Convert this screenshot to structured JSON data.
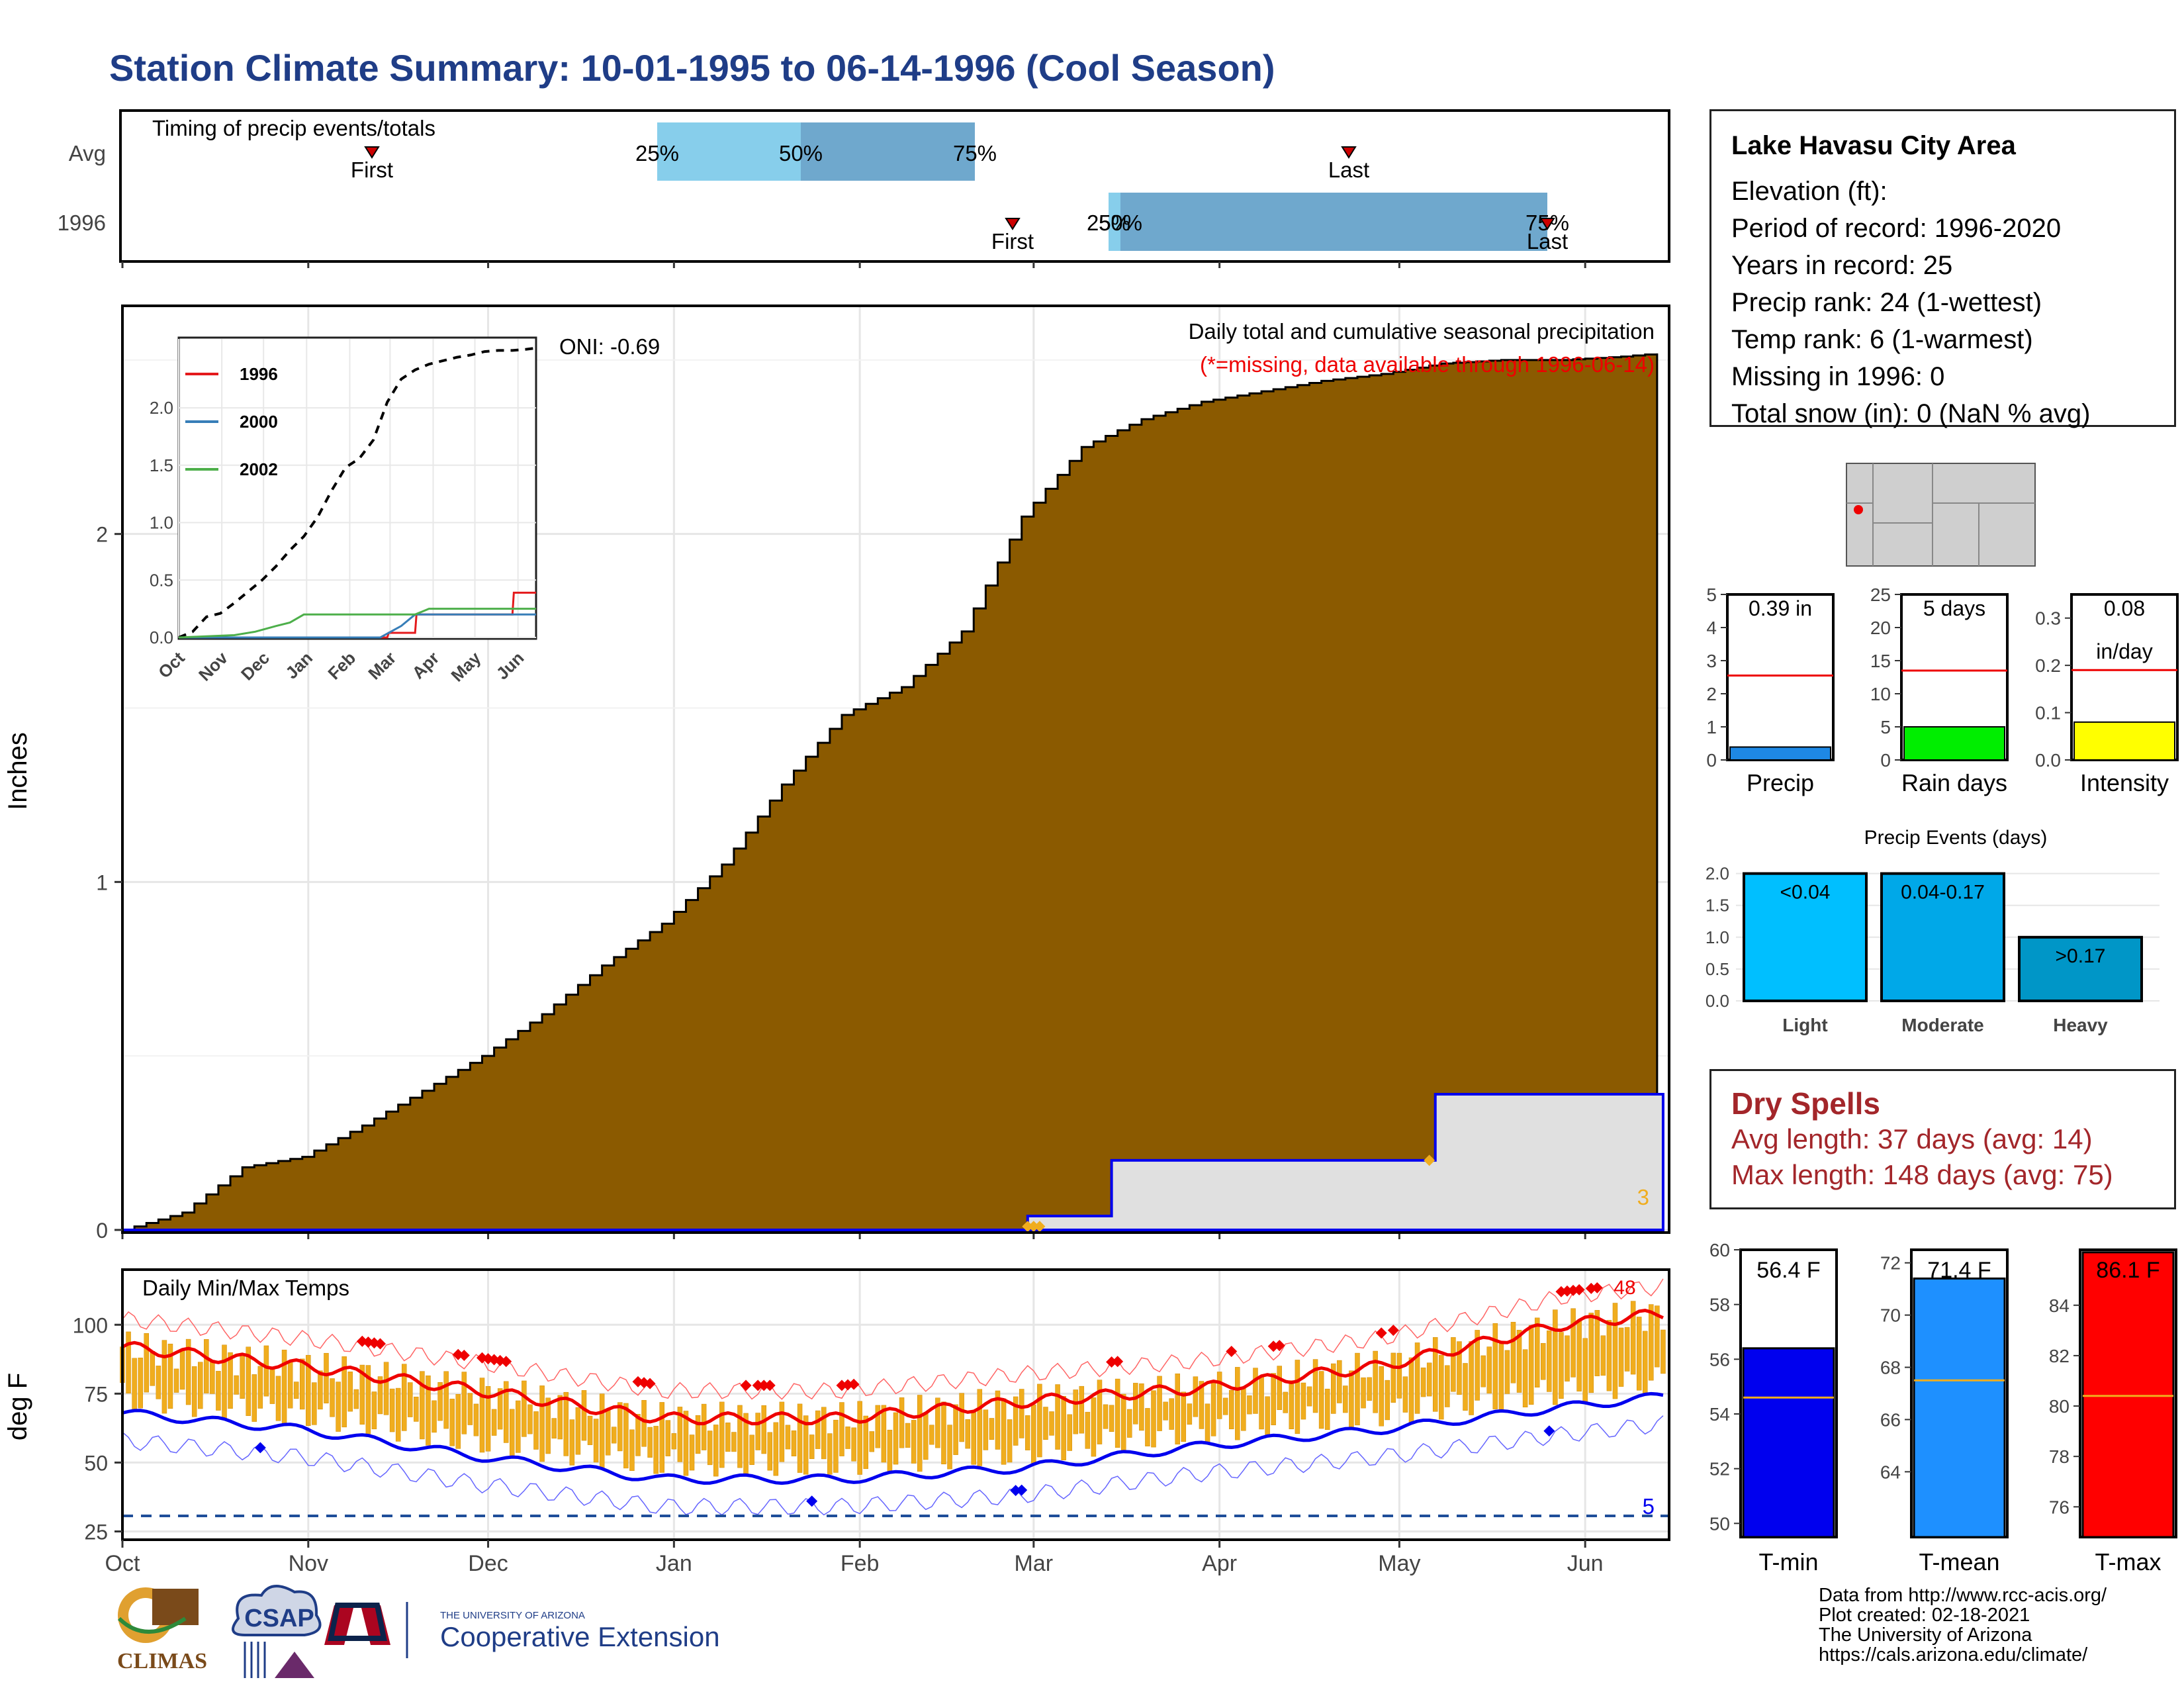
{
  "title": "Station Climate Summary: 10-01-1995 to 06-14-1996 (Cool Season)",
  "colors": {
    "title": "#1f3d87",
    "cum_fill": "#8b5a00",
    "blue": "#0000ee",
    "red": "#ee0000",
    "orange": "#f0ad1e",
    "grey": "#e0e0e0",
    "dry": "#a3262a"
  },
  "timing": {
    "label": "Timing of precip events/totals",
    "rows": [
      "Avg",
      "1996"
    ],
    "markers": {
      "first": "First",
      "last": "Last",
      "p25": "25%",
      "p50": "50%",
      "p75": "75%"
    }
  },
  "months": [
    "Oct",
    "Nov",
    "Dec",
    "Jan",
    "Feb",
    "Mar",
    "Apr",
    "May",
    "Jun"
  ],
  "main": {
    "ylabel": "Inches",
    "yticks": [
      "0",
      "1",
      "2"
    ],
    "annotation_title": "Daily total and cumulative seasonal precipitation",
    "annotation_missing": "(*=missing, data available through 1996-06-14)",
    "oni": "ONI: -0.69",
    "count_label": "3"
  },
  "inset": {
    "months": [
      "Oct",
      "Nov",
      "Dec",
      "Jan",
      "Feb",
      "Mar",
      "Apr",
      "May",
      "Jun"
    ],
    "yticks": [
      "0.0",
      "0.5",
      "1.0",
      "1.5",
      "2.0"
    ],
    "legend": [
      "1996",
      "2000",
      "2002"
    ]
  },
  "temps": {
    "label": "Daily Min/Max Temps",
    "ylabel": "deg F",
    "yticks": [
      "25",
      "50",
      "75",
      "100"
    ],
    "count_label": "5",
    "hot_label": "48"
  },
  "station": {
    "name": "Lake Havasu City Area",
    "lines": [
      "Elevation (ft):",
      "Period of record: 1996-2020",
      "Years in record: 25",
      "Precip rank: 24 (1-wettest)",
      "Temp rank: 6 (1-warmest)",
      "Missing in 1996: 0",
      "Total snow (in): 0 (NaN % avg)"
    ]
  },
  "summary_bars": [
    {
      "name": "Precip",
      "label": "0.39 in",
      "value": 0.39,
      "avg": 2.55,
      "ymax": 5,
      "ticks": [
        "0",
        "1",
        "2",
        "3",
        "4",
        "5"
      ],
      "color": "#1e88e5"
    },
    {
      "name": "Rain days",
      "label": "5 days",
      "value": 5,
      "avg": 13.5,
      "ymax": 25,
      "ticks": [
        "0",
        "5",
        "10",
        "15",
        "20",
        "25"
      ],
      "color": "#00ee00"
    },
    {
      "name": "Intensity",
      "label": "0.08",
      "label2": "in/day",
      "value": 0.08,
      "avg": 0.19,
      "ymax": 0.35,
      "ticks": [
        "0.0",
        "0.1",
        "0.2",
        "0.3"
      ],
      "color": "#ffff00"
    }
  ],
  "events": {
    "title": "Precip Events (days)",
    "yticks": [
      "0.0",
      "0.5",
      "1.0",
      "1.5",
      "2.0"
    ],
    "bars": [
      {
        "cat": "Light",
        "label": "<0.04",
        "value": 2,
        "color": "#00bfff"
      },
      {
        "cat": "Moderate",
        "label": "0.04-0.17",
        "value": 2,
        "color": "#00a8e8"
      },
      {
        "cat": "Heavy",
        "label": ">0.17",
        "value": 1,
        "color": "#0096c7"
      }
    ]
  },
  "dry_spells": {
    "title": "Dry Spells",
    "avg": "Avg length: 37 days (avg: 14)",
    "max": "Max length: 148 days (avg: 75)"
  },
  "temp_bars": [
    {
      "name": "T-min",
      "label": "56.4 F",
      "value": 56.4,
      "avg": 54.6,
      "ymin": 49.5,
      "ymax": 60,
      "ticks": [
        "50",
        "52",
        "54",
        "56",
        "58",
        "60"
      ],
      "color": "#0000ee"
    },
    {
      "name": "T-mean",
      "label": "71.4 F",
      "value": 71.4,
      "avg": 67.5,
      "ymin": 61.5,
      "ymax": 72.5,
      "ticks": [
        "64",
        "66",
        "68",
        "70",
        "72"
      ],
      "color": "#1e90ff"
    },
    {
      "name": "T-max",
      "label": "86.1 F",
      "value": 86.1,
      "avg": 80.4,
      "ymin": 74.8,
      "ymax": 86.2,
      "ticks": [
        "76",
        "78",
        "80",
        "82",
        "84"
      ],
      "color": "#ff0000"
    }
  ],
  "footer": [
    "Data from http://www.rcc-acis.org/",
    "Plot created: 02-18-2021",
    "The University of Arizona",
    "https://cals.arizona.edu/climate/"
  ],
  "logos": {
    "climas": "CLIMAS",
    "csap": "CSAP",
    "ua_small": "THE UNIVERSITY OF ARIZONA",
    "ua_big": "Cooperative Extension"
  },
  "chart_data": [
    {
      "type": "area",
      "title": "Daily total and cumulative seasonal precipitation",
      "ylabel": "Inches",
      "ylim": [
        0,
        2.65
      ],
      "x_months": [
        "Oct",
        "Nov",
        "Dec",
        "Jan",
        "Feb",
        "Mar",
        "Apr",
        "May",
        "Jun"
      ],
      "series": [
        {
          "name": "avg cumulative",
          "x_day": [
            0,
            10,
            20,
            30,
            40,
            50,
            60,
            70,
            80,
            90,
            100,
            110,
            120,
            130,
            140,
            150,
            160,
            170,
            180,
            190,
            200,
            210,
            220,
            230,
            240,
            250,
            257
          ],
          "values": [
            0,
            0.05,
            0.18,
            0.21,
            0.3,
            0.4,
            0.5,
            0.62,
            0.76,
            0.88,
            1.05,
            1.28,
            1.48,
            1.56,
            1.72,
            2.05,
            2.25,
            2.33,
            2.38,
            2.41,
            2.44,
            2.46,
            2.49,
            2.5,
            2.5,
            2.51,
            2.52
          ]
        },
        {
          "name": "1996 cumulative",
          "x_day": [
            0,
            150,
            151,
            164,
            165,
            218,
            219,
            257
          ],
          "values": [
            0,
            0,
            0.04,
            0.04,
            0.2,
            0.2,
            0.39,
            0.39
          ]
        }
      ]
    },
    {
      "type": "line",
      "title": "Daily Min/Max Temps",
      "ylabel": "deg F",
      "ylim": [
        22,
        120
      ],
      "series": [
        {
          "name": "avg max",
          "x_day": [
            0,
            30,
            60,
            90,
            120,
            150,
            180,
            210,
            240,
            257
          ],
          "values": [
            92,
            85,
            76,
            66,
            66,
            72,
            77,
            85,
            100,
            104
          ]
        },
        {
          "name": "avg min",
          "x_day": [
            0,
            30,
            60,
            90,
            120,
            150,
            180,
            210,
            240,
            257
          ],
          "values": [
            68,
            62,
            52,
            44,
            44,
            48,
            56,
            62,
            70,
            74
          ]
        }
      ]
    }
  ]
}
